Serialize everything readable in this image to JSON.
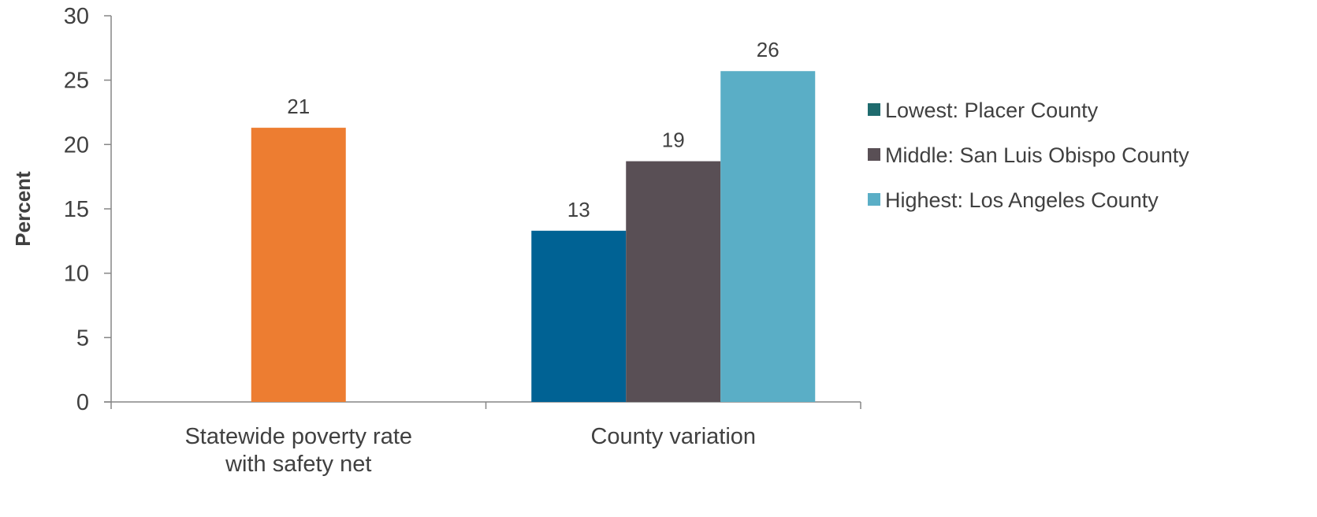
{
  "chart_data": {
    "type": "bar",
    "ylabel": "Percent",
    "ylim": [
      0,
      30
    ],
    "yticks": [
      0,
      5,
      10,
      15,
      20,
      25,
      30
    ],
    "grid": false,
    "legend_position": "right",
    "categories": [
      "Statewide poverty rate\nwith safety net",
      "County variation"
    ],
    "groups": [
      {
        "category": "Statewide poverty rate\nwith safety net",
        "bars": [
          {
            "value": 21.3,
            "label": "21",
            "color": "#ED7D31",
            "series": null
          }
        ]
      },
      {
        "category": "County variation",
        "bars": [
          {
            "value": 13.3,
            "label": "13",
            "color": "#006294",
            "series": "Lowest: Placer County"
          },
          {
            "value": 18.7,
            "label": "19",
            "color": "#594F55",
            "series": "Middle: San Luis Obispo County"
          },
          {
            "value": 25.7,
            "label": "26",
            "color": "#5AAEC6",
            "series": "Highest: Los Angeles County"
          }
        ]
      }
    ],
    "legend": [
      {
        "name": "Lowest: Placer County",
        "color": "#1F6B6E"
      },
      {
        "name": "Middle: San Luis Obispo County",
        "color": "#594F55"
      },
      {
        "name": "Highest: Los Angeles County",
        "color": "#5AAEC6"
      }
    ]
  }
}
